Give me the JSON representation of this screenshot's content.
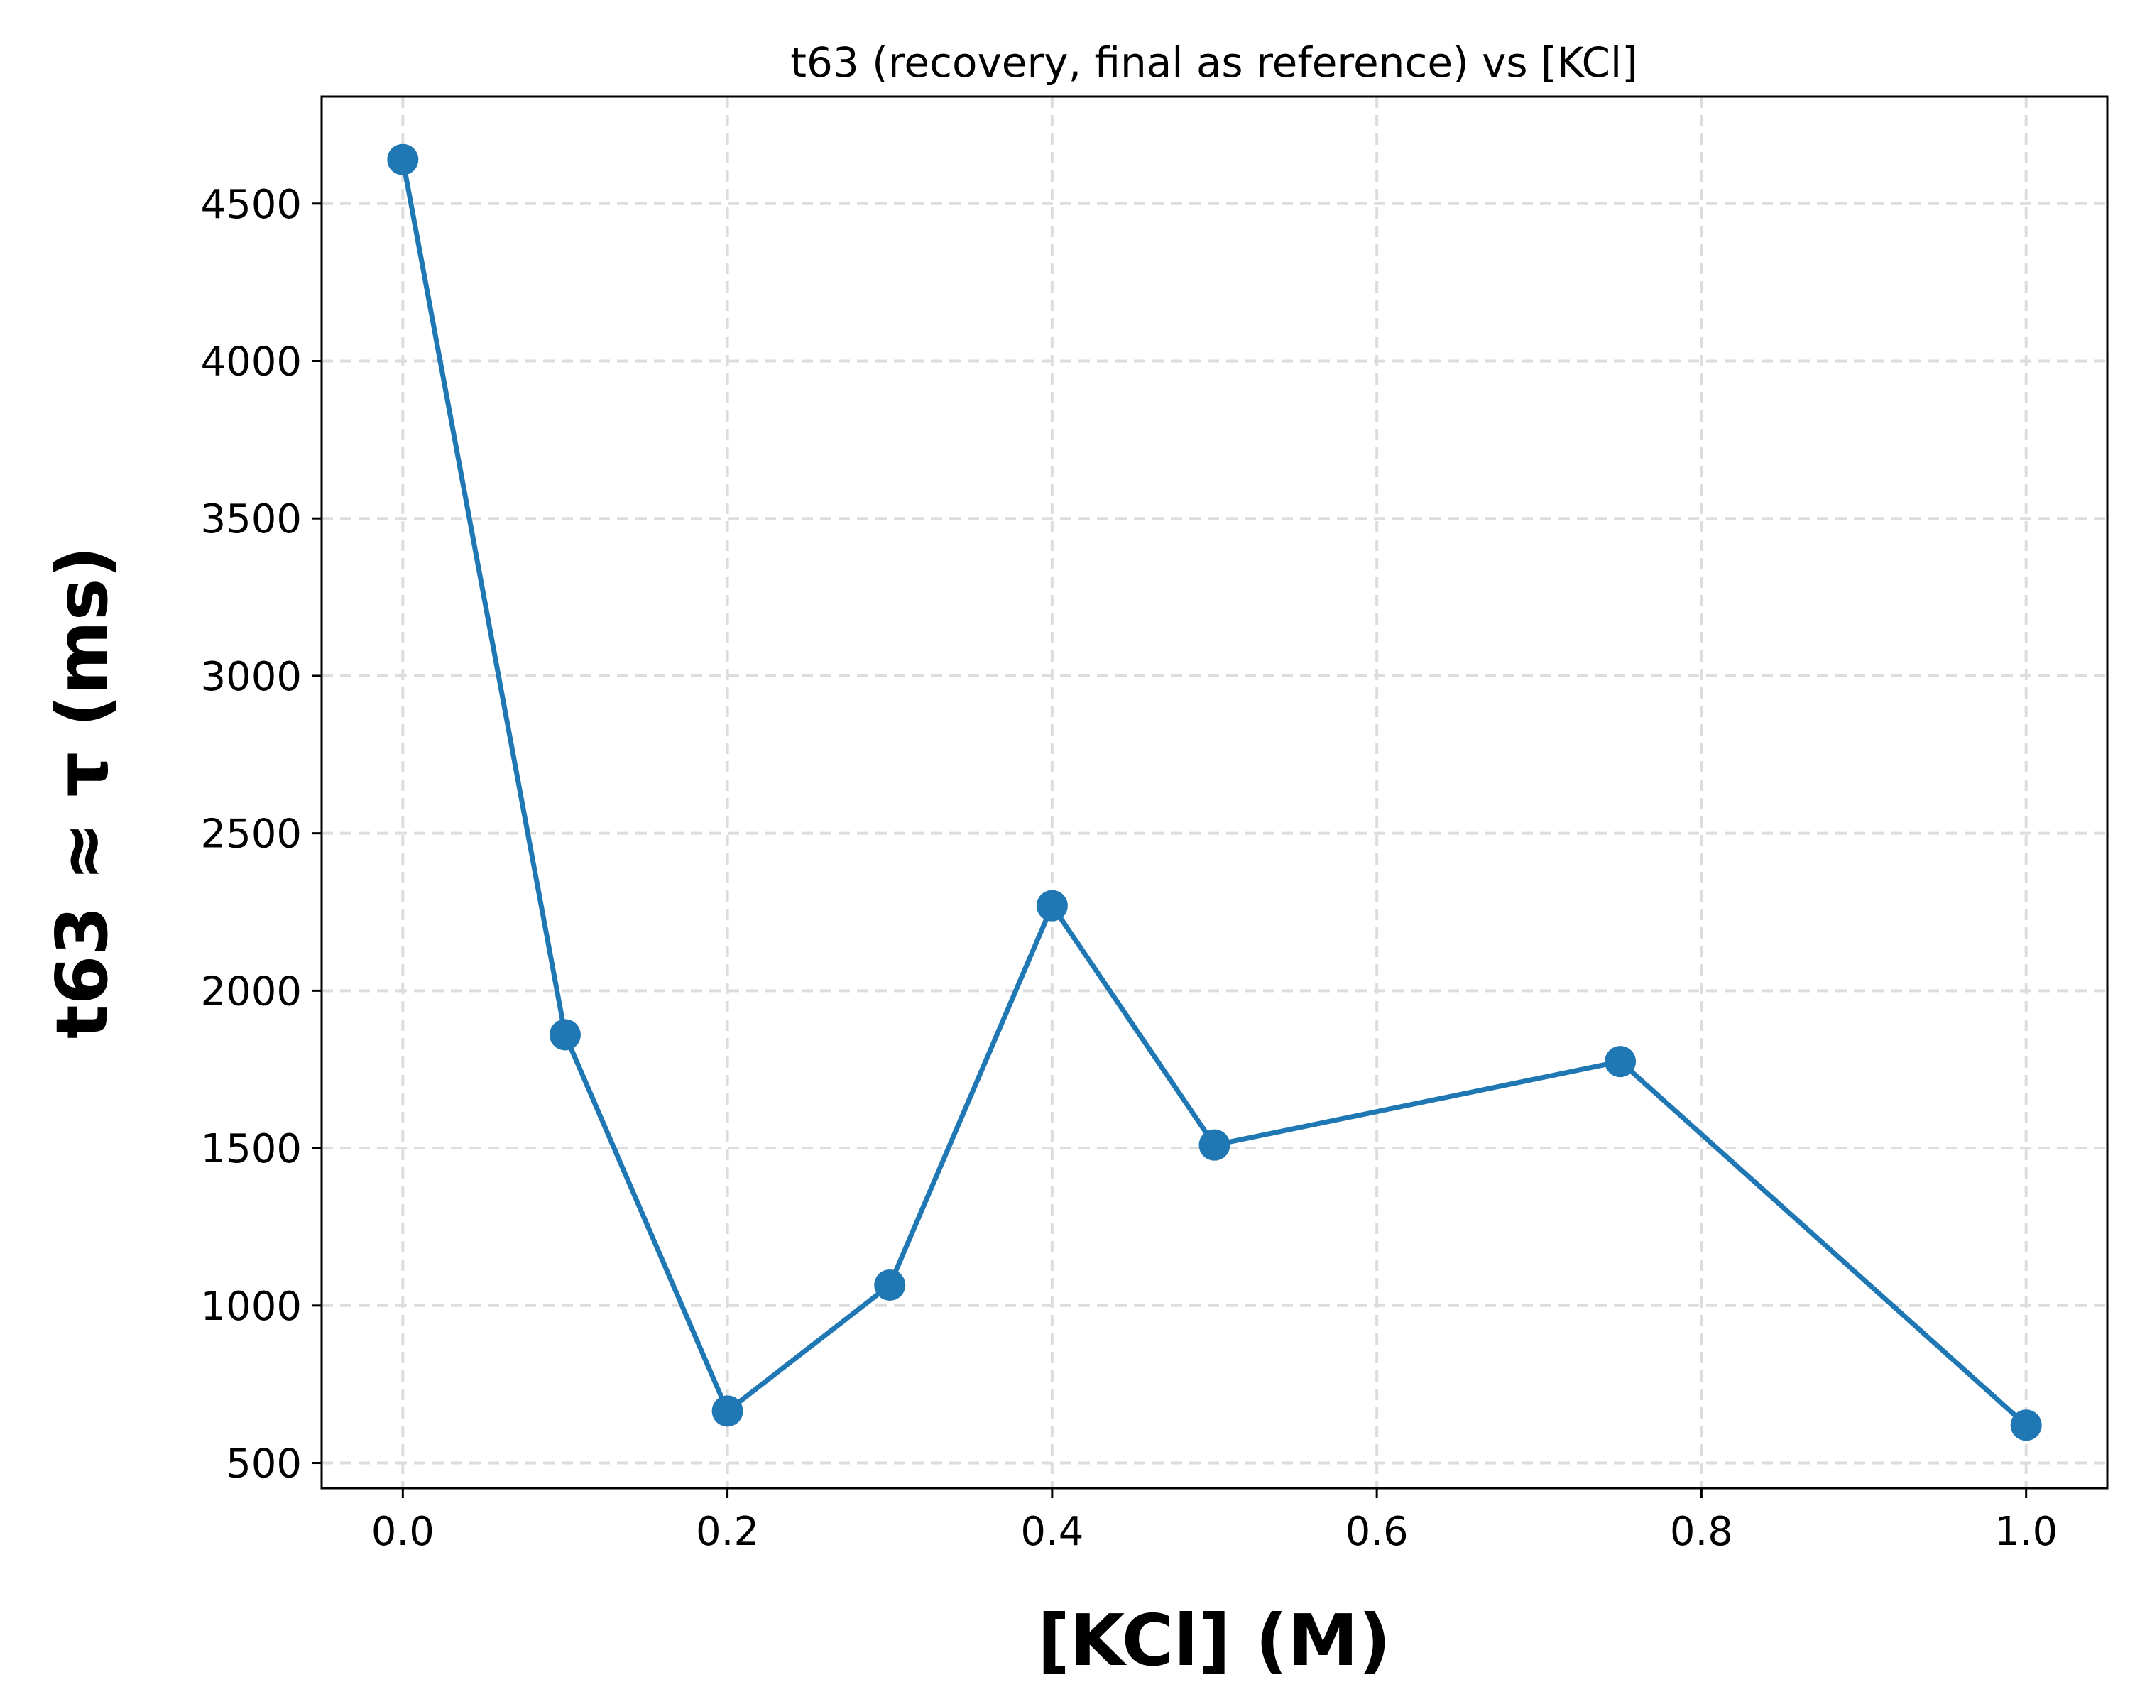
{
  "chart_data": {
    "type": "line",
    "title": "t63 (recovery, final as reference) vs [KCl]",
    "xlabel": "[KCl] (M)",
    "ylabel": "t63 ≈ τ (ms)",
    "xlim": [
      -0.05,
      1.05
    ],
    "ylim": [
      420,
      4840
    ],
    "xticks": [
      0.0,
      0.2,
      0.4,
      0.6,
      0.8,
      1.0
    ],
    "xtick_labels": [
      "0.0",
      "0.2",
      "0.4",
      "0.6",
      "0.8",
      "1.0"
    ],
    "yticks": [
      500,
      1000,
      1500,
      2000,
      2500,
      3000,
      3500,
      4000,
      4500
    ],
    "ytick_labels": [
      "500",
      "1000",
      "1500",
      "2000",
      "2500",
      "3000",
      "3500",
      "4000",
      "4500"
    ],
    "grid": true,
    "series": [
      {
        "color": "#1f77b4",
        "marker": "circle",
        "x": [
          0.0,
          0.1,
          0.2,
          0.3,
          0.4,
          0.5,
          0.75,
          1.0
        ],
        "y": [
          4640,
          1860,
          665,
          1065,
          2270,
          1510,
          1775,
          620
        ]
      }
    ]
  }
}
